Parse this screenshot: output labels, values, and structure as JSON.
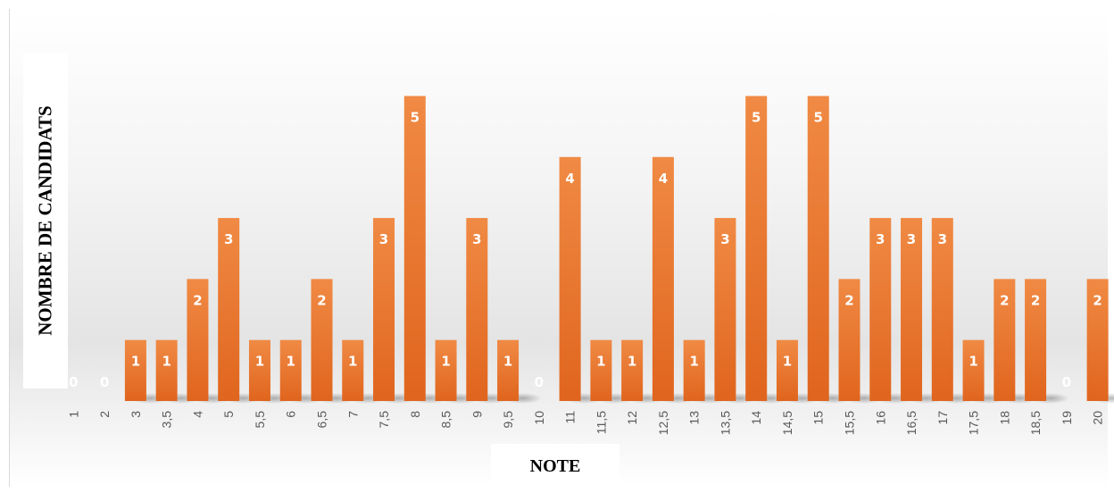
{
  "chart_data": {
    "type": "bar",
    "title": "",
    "xlabel": "NOTE",
    "ylabel": "NOMBRE DE CANDIDATS",
    "ylim": [
      0,
      5
    ],
    "grid": false,
    "legend": "none",
    "data_labels": true,
    "bar_color": "#ED7D31",
    "categories": [
      "1",
      "2",
      "3",
      "3,5",
      "4",
      "5",
      "5,5",
      "6",
      "6,5",
      "7",
      "7,5",
      "8",
      "8,5",
      "9",
      "9,5",
      "10",
      "11",
      "11,5",
      "12",
      "12,5",
      "13",
      "13,5",
      "14",
      "14,5",
      "15",
      "15,5",
      "16",
      "16,5",
      "17",
      "17,5",
      "18",
      "18,5",
      "19",
      "20"
    ],
    "values": [
      0,
      0,
      1,
      1,
      2,
      3,
      1,
      1,
      2,
      1,
      3,
      5,
      1,
      3,
      1,
      0,
      4,
      1,
      1,
      4,
      1,
      3,
      5,
      1,
      5,
      2,
      3,
      3,
      3,
      1,
      2,
      2,
      0,
      2
    ]
  }
}
